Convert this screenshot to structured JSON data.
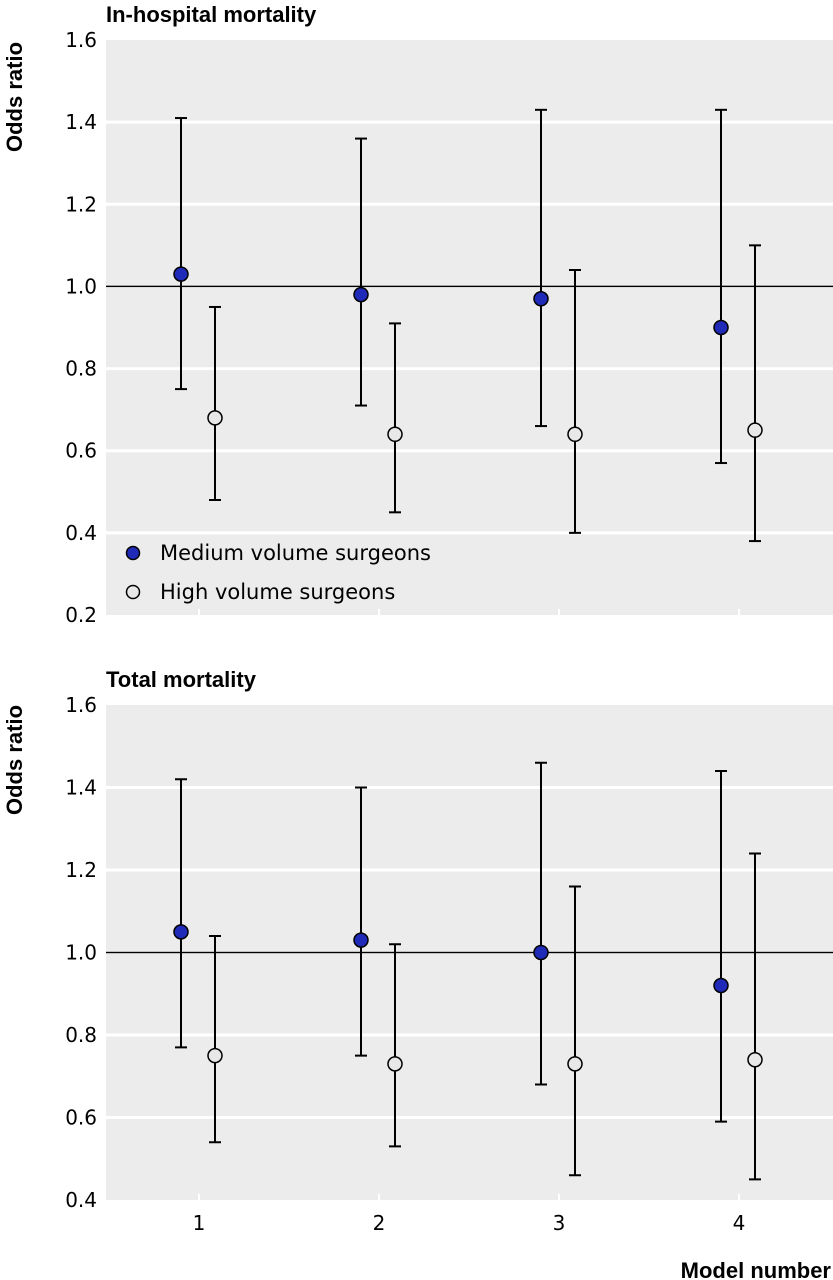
{
  "colors": {
    "medium": "#1f2bb8",
    "high": "#e8e8e8",
    "plot_bg": "#ececec",
    "grid": "#ffffff"
  },
  "xlabel": "Model number",
  "chart_data": [
    {
      "type": "scatter",
      "title": "In-hospital mortality",
      "ylabel": "Odds ratio",
      "ylim": [
        0.2,
        1.6
      ],
      "yticks": [
        "0.2",
        "0.4",
        "0.6",
        "0.8",
        "1.0",
        "1.2",
        "1.4",
        "1.6"
      ],
      "categories": [
        "1",
        "2",
        "3",
        "4"
      ],
      "reference_line": 1.0,
      "grid": true,
      "legend": {
        "placement": "bottom-left",
        "entries": [
          "Medium volume surgeons",
          "High volume surgeons"
        ]
      },
      "series": [
        {
          "name": "Medium volume surgeons",
          "values": [
            1.03,
            0.98,
            0.97,
            0.9
          ],
          "lower": [
            0.75,
            0.71,
            0.66,
            0.57
          ],
          "upper": [
            1.41,
            1.36,
            1.43,
            1.43
          ]
        },
        {
          "name": "High volume surgeons",
          "values": [
            0.68,
            0.64,
            0.64,
            0.65
          ],
          "lower": [
            0.48,
            0.45,
            0.4,
            0.38
          ],
          "upper": [
            0.95,
            0.91,
            1.04,
            1.1
          ]
        }
      ]
    },
    {
      "type": "scatter",
      "title": "Total mortality",
      "ylabel": "Odds ratio",
      "ylim": [
        0.4,
        1.6
      ],
      "yticks": [
        "0.4",
        "0.6",
        "0.8",
        "1.0",
        "1.2",
        "1.4",
        "1.6"
      ],
      "categories": [
        "1",
        "2",
        "3",
        "4"
      ],
      "reference_line": 1.0,
      "grid": true,
      "series": [
        {
          "name": "Medium volume surgeons",
          "values": [
            1.05,
            1.03,
            1.0,
            0.92
          ],
          "lower": [
            0.77,
            0.75,
            0.68,
            0.59
          ],
          "upper": [
            1.42,
            1.4,
            1.46,
            1.44
          ]
        },
        {
          "name": "High volume surgeons",
          "values": [
            0.75,
            0.73,
            0.73,
            0.74
          ],
          "lower": [
            0.54,
            0.53,
            0.46,
            0.45
          ],
          "upper": [
            1.04,
            1.02,
            1.16,
            1.24
          ]
        }
      ]
    }
  ]
}
